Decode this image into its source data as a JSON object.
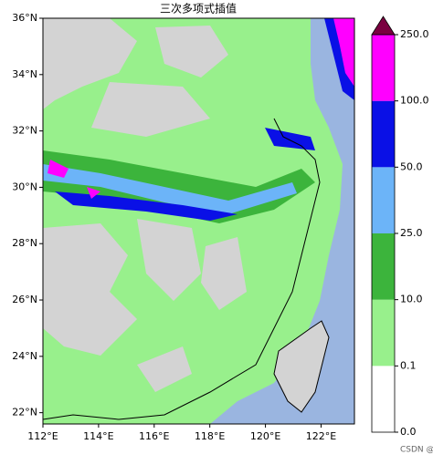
{
  "chart_data": {
    "type": "contourf",
    "title": "三次多项式插值",
    "xlim": [
      112,
      123.2
    ],
    "ylim": [
      21.6,
      36
    ],
    "xticks": [
      {
        "value": 112,
        "label": "112°E"
      },
      {
        "value": 114,
        "label": "114°E"
      },
      {
        "value": 116,
        "label": "116°E"
      },
      {
        "value": 118,
        "label": "118°E"
      },
      {
        "value": 120,
        "label": "120°E"
      },
      {
        "value": 122,
        "label": "122°E"
      }
    ],
    "yticks": [
      {
        "value": 22,
        "label": "22°N"
      },
      {
        "value": 24,
        "label": "24°N"
      },
      {
        "value": 26,
        "label": "26°N"
      },
      {
        "value": 28,
        "label": "28°N"
      },
      {
        "value": 30,
        "label": "30°N"
      },
      {
        "value": 32,
        "label": "32°N"
      },
      {
        "value": 34,
        "label": "34°N"
      },
      {
        "value": 36,
        "label": "36°N"
      }
    ],
    "colorbar": {
      "levels": [
        {
          "value": 0,
          "label": "0.0"
        },
        {
          "value": 0.1,
          "label": "0.1"
        },
        {
          "value": 10,
          "label": "10.0"
        },
        {
          "value": 25,
          "label": "25.0"
        },
        {
          "value": 50,
          "label": "50.0"
        },
        {
          "value": 100,
          "label": "100.0"
        },
        {
          "value": 250,
          "label": "250.0"
        }
      ],
      "colors": [
        "#ffffff",
        "#98f08c",
        "#3cb43c",
        "#6cb4f8",
        "#0a10e6",
        "#ff00ff"
      ],
      "extend_color": "#7a0040"
    },
    "watermark": "CSDN @钇铼"
  }
}
